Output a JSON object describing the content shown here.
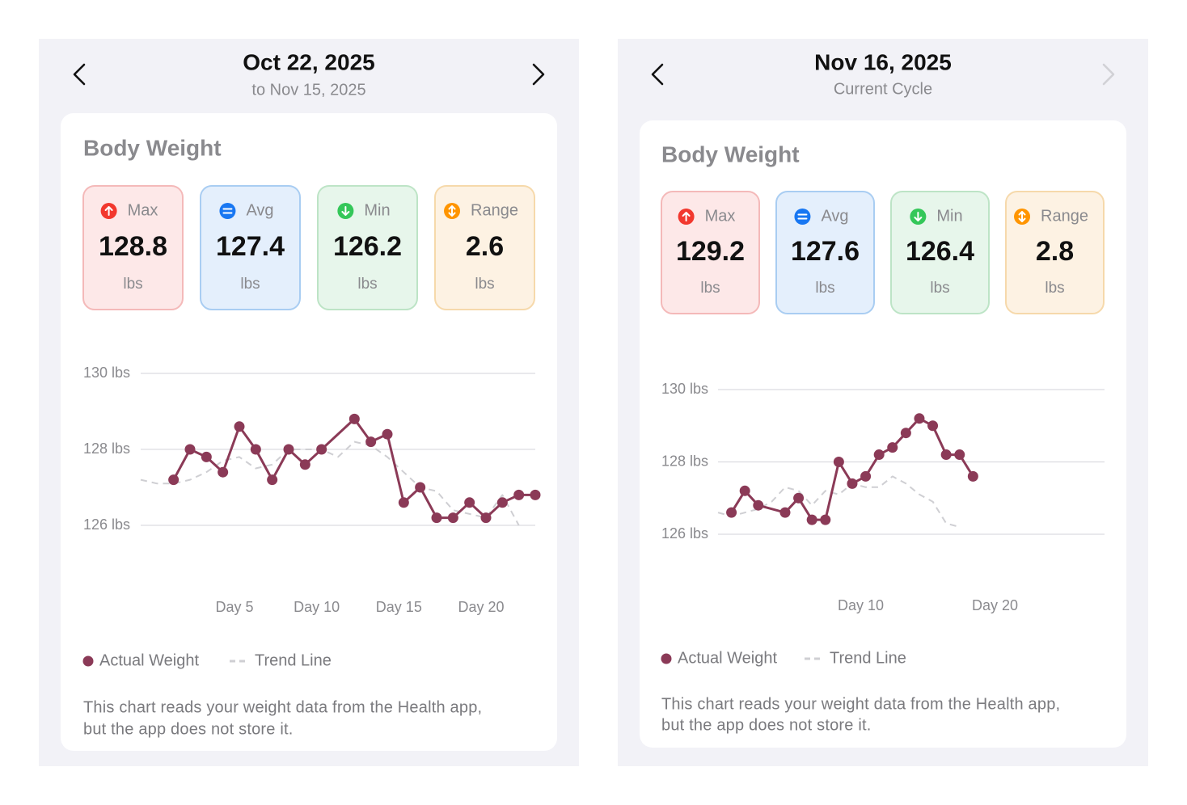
{
  "panels": [
    {
      "date": "Oct 22, 2025",
      "subtitle": "to Nov 15, 2025",
      "title": "Body Weight",
      "stats": [
        {
          "label": "Max",
          "value": 128.8,
          "unit": "lbs"
        },
        {
          "label": "Avg",
          "value": 127.4,
          "unit": "lbs"
        },
        {
          "label": "Min",
          "value": 126.2,
          "unit": "lbs"
        },
        {
          "label": "Range",
          "value": 2.6,
          "unit": "lbs"
        }
      ],
      "footnote": [
        "This chart reads your weight data from the Health app,",
        "but the app does not store it."
      ]
    },
    {
      "date": "Nov 16, 2025",
      "subtitle": "Current Cycle",
      "title": "Body Weight",
      "stats": [
        {
          "label": "Max",
          "value": 129.2,
          "unit": "lbs"
        },
        {
          "label": "Avg",
          "value": 127.6,
          "unit": "lbs"
        },
        {
          "label": "Min",
          "value": 126.4,
          "unit": "lbs"
        },
        {
          "label": "Range",
          "value": 2.8,
          "unit": "lbs"
        }
      ],
      "footnote": [
        "This chart reads your weight data from the Health app,",
        "but the app does not store it."
      ]
    }
  ],
  "chart_data": [
    {
      "type": "line",
      "xlim": [
        -1,
        23
      ],
      "ylim": [
        126,
        130
      ],
      "grid": true,
      "yticks": [
        {
          "value": 126,
          "label": "126 lbs"
        },
        {
          "value": 128,
          "label": "128 lbs"
        },
        {
          "value": 130,
          "label": "130 lbs"
        }
      ],
      "xticks": [
        {
          "value": 5,
          "label": "Day 5"
        },
        {
          "value": 10,
          "label": "Day 10"
        },
        {
          "value": 15,
          "label": "Day 15"
        },
        {
          "value": 20,
          "label": "Day 20"
        }
      ],
      "series": [
        {
          "name": "Actual Weight",
          "color": "#8b3a57",
          "markers": true,
          "x": [
            1,
            2,
            3,
            4,
            5,
            6,
            7,
            8,
            9,
            10,
            12,
            13,
            14,
            15,
            16,
            17,
            18,
            19,
            20,
            21,
            22,
            23
          ],
          "values": [
            127.2,
            128.0,
            127.8,
            127.4,
            128.6,
            128.0,
            127.2,
            128.0,
            127.6,
            128.0,
            128.8,
            128.2,
            128.4,
            126.6,
            127.0,
            126.2,
            126.2,
            126.6,
            126.2,
            126.6,
            126.8,
            126.8
          ]
        },
        {
          "name": "Trend Line",
          "color": "#cfcfd3",
          "dashed": true,
          "x": [
            -1,
            0,
            1,
            2,
            3,
            4,
            5,
            6,
            7,
            8,
            9,
            10,
            11,
            12,
            13,
            14,
            15,
            16,
            17,
            18,
            19,
            20,
            21,
            22
          ],
          "values": [
            127.2,
            127.1,
            127.1,
            127.2,
            127.4,
            127.7,
            127.8,
            127.5,
            127.6,
            128.0,
            128.0,
            128.0,
            127.8,
            128.2,
            128.1,
            127.8,
            127.4,
            127.0,
            126.9,
            126.4,
            126.3,
            126.2,
            126.8,
            126.0
          ]
        }
      ]
    },
    {
      "type": "line",
      "xlim": [
        -1,
        27.8
      ],
      "ylim": [
        126,
        130
      ],
      "grid": true,
      "yticks": [
        {
          "value": 126,
          "label": "126 lbs"
        },
        {
          "value": 128,
          "label": "128 lbs"
        },
        {
          "value": 130,
          "label": "130 lbs"
        }
      ],
      "xticks": [
        {
          "value": 10,
          "label": "Day 10"
        },
        {
          "value": 20,
          "label": "Day 20"
        }
      ],
      "series": [
        {
          "name": "Actual Weight",
          "color": "#8b3a57",
          "markers": true,
          "x": [
            0,
            1,
            2,
            4,
            5,
            6,
            7,
            8,
            9,
            10,
            11,
            12,
            13,
            14,
            15,
            16,
            17,
            18
          ],
          "values": [
            126.6,
            127.2,
            126.8,
            126.6,
            127.0,
            126.4,
            126.4,
            128.0,
            127.4,
            127.6,
            128.2,
            128.4,
            128.8,
            129.2,
            129.0,
            128.2,
            128.2,
            127.6
          ]
        },
        {
          "name": "Trend Line",
          "color": "#cfcfd3",
          "dashed": true,
          "x": [
            -1,
            0,
            1,
            2,
            3,
            4,
            5,
            6,
            7,
            8,
            9,
            10,
            11,
            12,
            13,
            14,
            15,
            16,
            17
          ],
          "values": [
            126.6,
            126.5,
            126.6,
            126.7,
            126.9,
            127.3,
            127.2,
            126.8,
            127.2,
            127.1,
            127.4,
            127.3,
            127.3,
            127.6,
            127.4,
            127.1,
            126.9,
            126.3,
            126.2
          ]
        }
      ]
    }
  ]
}
